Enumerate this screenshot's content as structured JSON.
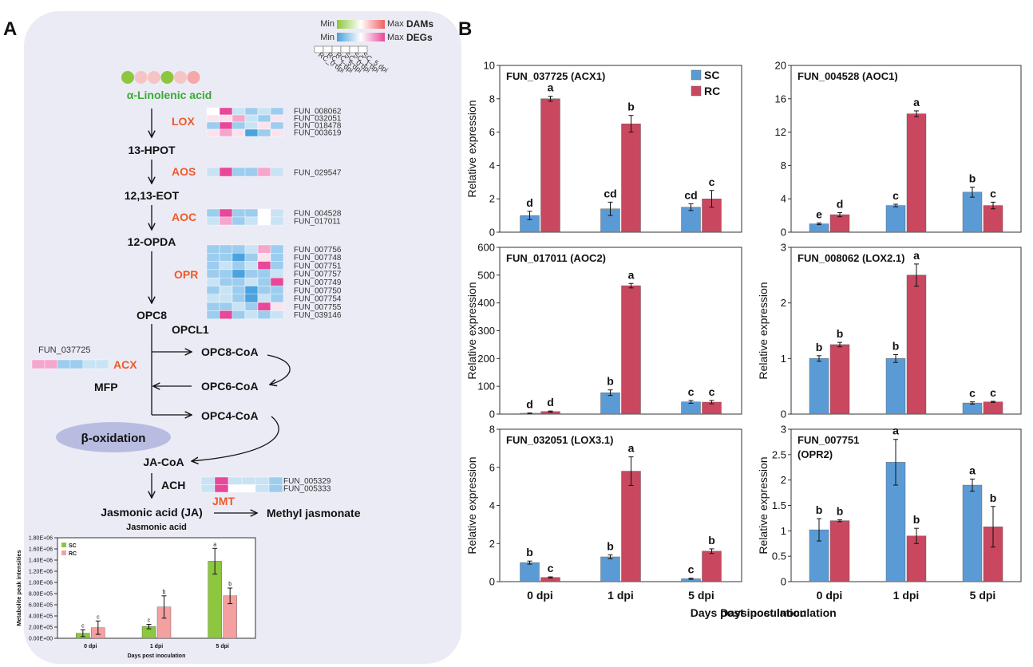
{
  "panel_labels": {
    "a": "A",
    "b": "B"
  },
  "colors": {
    "panel_bg": "#ebebf5",
    "sc": "#5b9bd5",
    "rc": "#c9475f",
    "sc_met": "#8dc63f",
    "rc_met": "#f4a0a0",
    "enzyme": "#ef5a28",
    "green_text": "#3aaa35",
    "oval": "#b8bce0"
  },
  "legend": {
    "dams_min": "Min",
    "dams_max": "Max",
    "dams_label": "DAMs",
    "degs_min": "Min",
    "degs_max": "Max",
    "degs_label": "DEGs",
    "columns": [
      "RC_0 dpi",
      "RC_1 dpi",
      "RC_5 dpi",
      "SC_0 dpi",
      "SC_1 dpi",
      "SC_5 dpi"
    ]
  },
  "pathway": {
    "top_metabolite": "α-Linolenic acid",
    "metabolite_dots": [
      "#8dc63f",
      "#f6c4c4",
      "#f6c4c4",
      "#8dc63f",
      "#f6c4c4",
      "#f4a8a8"
    ],
    "steps": [
      {
        "enzyme": "LOX",
        "product": "13-HPOT",
        "genes": [
          "FUN_008062",
          "FUN_032051",
          "FUN_018478",
          "FUN_003619"
        ]
      },
      {
        "enzyme": "AOS",
        "product": "12,13-EOT",
        "genes": [
          "FUN_029547"
        ]
      },
      {
        "enzyme": "AOC",
        "product": "12-OPDA",
        "genes": [
          "FUN_004528",
          "FUN_017011"
        ]
      },
      {
        "enzyme": "OPR",
        "product": "OPC8",
        "genes": [
          "FUN_007756",
          "FUN_007748",
          "FUN_007751",
          "FUN_007757",
          "FUN_007749",
          "FUN_007750",
          "FUN_007754",
          "FUN_007755",
          "FUN_039146"
        ]
      }
    ],
    "opcl1": "OPCL1",
    "acx_gene": "FUN_037725",
    "acx": "ACX",
    "mfp": "MFP",
    "opc8coa": "OPC8-CoA",
    "opc6coa": "OPC6-CoA",
    "opc4coa": "OPC4-CoA",
    "beta_oxidation": "β-oxidation",
    "jacoa": "JA-CoA",
    "ach": "ACH",
    "jmt_genes": [
      "FUN_005329",
      "FUN_005333"
    ],
    "ja": "Jasmonic acid (JA)",
    "jmt": "JMT",
    "meja": "Methyl jasmonate"
  },
  "chart_data": [
    {
      "type": "bar",
      "title": "Jasmonic acid",
      "categories": [
        "0 dpi",
        "1 dpi",
        "5 dpi"
      ],
      "series": [
        {
          "name": "SC",
          "values": [
            90000,
            210000,
            1380000
          ],
          "errors": [
            60000,
            40000,
            230000
          ],
          "letters": [
            "c",
            "c",
            "a"
          ]
        },
        {
          "name": "RC",
          "values": [
            190000,
            560000,
            760000
          ],
          "errors": [
            120000,
            200000,
            140000
          ],
          "letters": [
            "c",
            "b",
            "b"
          ]
        }
      ],
      "ylim": [
        0,
        1800000
      ],
      "ticks": [
        "0.00E+00",
        "2.00E+05",
        "4.00E+05",
        "6.00E+05",
        "8.00E+05",
        "1.00E+06",
        "1.20E+06",
        "1.40E+06",
        "1.60E+06",
        "1.80E+06"
      ],
      "ylabel": "Metabolite peak intensities",
      "xlabel": "Days post inoculation"
    },
    {
      "type": "bar",
      "title": "FUN_037725 (ACX1)",
      "categories": [
        "0 dpi",
        "1 dpi",
        "5 dpi"
      ],
      "series": [
        {
          "name": "SC",
          "values": [
            1.0,
            1.4,
            1.5
          ],
          "errors": [
            0.25,
            0.4,
            0.2
          ],
          "letters": [
            "d",
            "cd",
            "cd"
          ]
        },
        {
          "name": "RC",
          "values": [
            8.0,
            6.5,
            2.0
          ],
          "errors": [
            0.15,
            0.5,
            0.5
          ],
          "letters": [
            "a",
            "b",
            "c"
          ]
        }
      ],
      "ylim": [
        0,
        10
      ],
      "ticks": [
        "0",
        "2",
        "4",
        "6",
        "8",
        "10"
      ],
      "ylabel": "Relative expression",
      "xlabel": ""
    },
    {
      "type": "bar",
      "title": "FUN_004528 (AOC1)",
      "categories": [
        "0 dpi",
        "1 dpi",
        "5 dpi"
      ],
      "series": [
        {
          "name": "SC",
          "values": [
            1.0,
            3.2,
            4.8
          ],
          "errors": [
            0.1,
            0.15,
            0.6
          ],
          "letters": [
            "e",
            "c",
            "b"
          ]
        },
        {
          "name": "RC",
          "values": [
            2.1,
            14.2,
            3.2
          ],
          "errors": [
            0.25,
            0.35,
            0.4
          ],
          "letters": [
            "d",
            "a",
            "c"
          ]
        }
      ],
      "ylim": [
        0,
        20
      ],
      "ticks": [
        "0",
        "4",
        "8",
        "12",
        "16",
        "20"
      ],
      "ylabel": "",
      "xlabel": ""
    },
    {
      "type": "bar",
      "title": "FUN_017011 (AOC2)",
      "categories": [
        "0 dpi",
        "1 dpi",
        "5 dpi"
      ],
      "series": [
        {
          "name": "SC",
          "values": [
            3,
            77,
            44
          ],
          "errors": [
            1,
            10,
            5
          ],
          "letters": [
            "d",
            "b",
            "c"
          ]
        },
        {
          "name": "RC",
          "values": [
            9,
            462,
            43
          ],
          "errors": [
            2,
            8,
            6
          ],
          "letters": [
            "d",
            "a",
            "c"
          ]
        }
      ],
      "ylim": [
        0,
        600
      ],
      "ticks": [
        "0",
        "100",
        "200",
        "300",
        "400",
        "500",
        "600"
      ],
      "ylabel": "Relative expression",
      "xlabel": ""
    },
    {
      "type": "bar",
      "title": "FUN_008062 (LOX2.1)",
      "categories": [
        "0 dpi",
        "1 dpi",
        "5 dpi"
      ],
      "series": [
        {
          "name": "SC",
          "values": [
            1.0,
            1.0,
            0.2
          ],
          "errors": [
            0.05,
            0.07,
            0.02
          ],
          "letters": [
            "b",
            "b",
            "c"
          ]
        },
        {
          "name": "RC",
          "values": [
            1.25,
            2.5,
            0.22
          ],
          "errors": [
            0.04,
            0.2,
            0.01
          ],
          "letters": [
            "b",
            "a",
            "c"
          ]
        }
      ],
      "ylim": [
        0,
        3
      ],
      "ticks": [
        "0",
        "1",
        "2",
        "3"
      ],
      "ylabel": "Relative expression",
      "xlabel": ""
    },
    {
      "type": "bar",
      "title": "FUN_032051 (LOX3.1)",
      "categories": [
        "0 dpi",
        "1 dpi",
        "5 dpi"
      ],
      "series": [
        {
          "name": "SC",
          "values": [
            1.0,
            1.3,
            0.15
          ],
          "errors": [
            0.08,
            0.1,
            0.03
          ],
          "letters": [
            "b",
            "b",
            "c"
          ]
        },
        {
          "name": "RC",
          "values": [
            0.22,
            5.8,
            1.6
          ],
          "errors": [
            0.03,
            0.75,
            0.12
          ],
          "letters": [
            "c",
            "a",
            "b"
          ]
        }
      ],
      "ylim": [
        0,
        8
      ],
      "ticks": [
        "0",
        "2",
        "4",
        "6",
        "8"
      ],
      "ylabel": "Relative expression",
      "xlabel": "Days post inoculation"
    },
    {
      "type": "bar",
      "title": "FUN_007751",
      "title2": "(OPR2)",
      "categories": [
        "0 dpi",
        "1 dpi",
        "5 dpi"
      ],
      "series": [
        {
          "name": "SC",
          "values": [
            1.02,
            2.35,
            1.9
          ],
          "errors": [
            0.22,
            0.45,
            0.12
          ],
          "letters": [
            "b",
            "a",
            "a"
          ]
        },
        {
          "name": "RC",
          "values": [
            1.2,
            0.9,
            1.08
          ],
          "errors": [
            0.02,
            0.15,
            0.4
          ],
          "letters": [
            "b",
            "b",
            "b"
          ]
        }
      ],
      "ylim": [
        0,
        3
      ],
      "ticks": [
        "0",
        "0.5",
        "1",
        "1.5",
        "2",
        "2.5",
        "3"
      ],
      "ylabel": "Relative expression",
      "xlabel": "Days post inoculation"
    }
  ]
}
